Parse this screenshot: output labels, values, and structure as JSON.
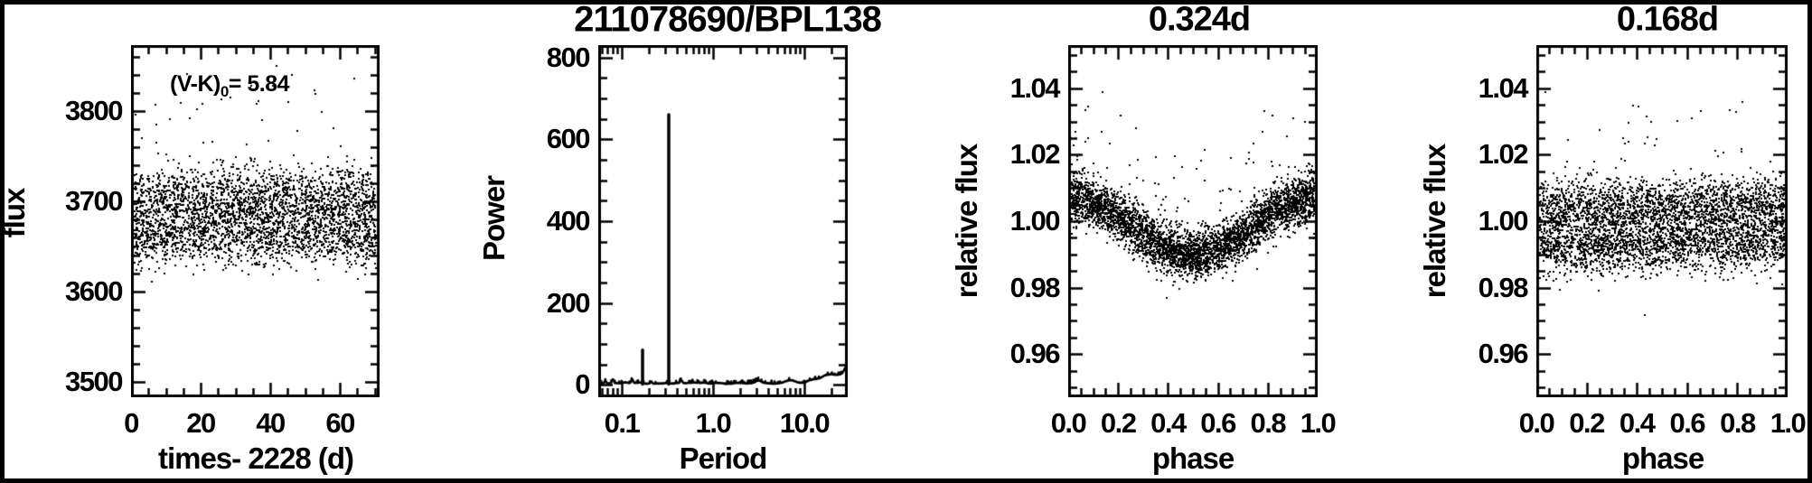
{
  "figure": {
    "title": "211078690/BPL138",
    "background": "#ffffff",
    "frame_color": "#000000",
    "data_color": "#000000"
  },
  "chart_data": [
    {
      "id": "flux-vs-time",
      "type": "scatter",
      "title": "",
      "xlabel": "times- 2228 (d)",
      "ylabel": "flux",
      "annotation": {
        "pre": "(V-K)",
        "sub": "0",
        "post": "= 5.84"
      },
      "xlim": [
        0,
        71.4
      ],
      "ylim": [
        3483,
        3873
      ],
      "xticks": {
        "values": [
          0,
          20,
          40,
          60
        ],
        "labels": [
          "0",
          "20",
          "40",
          "60"
        ]
      },
      "yticks": {
        "values": [
          3500,
          3600,
          3700,
          3800
        ],
        "labels": [
          "3500",
          "3600",
          "3700",
          "3800"
        ]
      },
      "x_minor_step": 5,
      "y_minor_step": 20,
      "grid": false,
      "cloud": {
        "n": 3400,
        "mean": 3683,
        "band_amplitude": 31,
        "noise_sigma": 14,
        "upper_outlier_frac": 0.02,
        "upper_outlier_max": 3862,
        "x_start": 0.3,
        "x_end": 70.9
      }
    },
    {
      "id": "periodogram",
      "type": "line",
      "title": "",
      "xscale": "log",
      "xlabel": "Period",
      "ylabel": "Power",
      "xlim": [
        0.0553,
        29.9
      ],
      "ylim": [
        -30,
        830
      ],
      "xticks": {
        "values": [
          0.1,
          1.0,
          10.0
        ],
        "labels": [
          "0.1",
          "1.0",
          "10.0"
        ]
      },
      "yticks": {
        "values": [
          0,
          200,
          400,
          600,
          800
        ],
        "labels": [
          "0",
          "200",
          "400",
          "600",
          "800"
        ]
      },
      "y_minor_step": 50,
      "grid": false,
      "peaks": [
        {
          "period": 0.324,
          "power": 660
        },
        {
          "period": 0.168,
          "power": 85
        }
      ],
      "noise_floor": {
        "base": 2.5,
        "amplitude": 3.5
      },
      "bumps": [
        [
          0.066,
          6,
          0.01
        ],
        [
          0.08,
          10,
          0.01
        ],
        [
          0.13,
          9,
          0.009
        ],
        [
          0.21,
          5,
          0.009
        ],
        [
          0.45,
          7,
          0.012
        ],
        [
          3.2,
          5,
          0.04
        ],
        [
          7,
          8,
          0.05
        ],
        [
          12,
          9,
          0.05
        ],
        [
          16,
          14,
          0.05
        ],
        [
          20,
          16,
          0.05
        ],
        [
          25,
          18,
          0.05
        ],
        [
          29.3,
          32,
          0.03
        ]
      ]
    },
    {
      "id": "phase-fold-best",
      "type": "scatter",
      "title": "0.324d",
      "xlabel": "phase",
      "ylabel": "relative flux",
      "xlim": [
        0,
        1
      ],
      "ylim": [
        0.947,
        1.053
      ],
      "xticks": {
        "values": [
          0,
          0.2,
          0.4,
          0.6,
          0.8,
          1.0
        ],
        "labels": [
          "0.0",
          "0.2",
          "0.4",
          "0.6",
          "0.8",
          "1.0"
        ]
      },
      "yticks": {
        "values": [
          0.96,
          0.98,
          1.0,
          1.02,
          1.04
        ],
        "labels": [
          "0.96",
          "0.98",
          "1.00",
          "1.02",
          "1.04"
        ]
      },
      "x_minor_step": 0.05,
      "y_minor_step": 0.005,
      "grid": false,
      "fold": {
        "n": 4200,
        "mean": 0.9985,
        "amplitude": 0.0085,
        "noise_sigma": 0.0036,
        "coherent": true,
        "upper_outlier_frac": 0.025,
        "upper_outlier_max": 1.038,
        "lower_outlier_frac": 0.004,
        "lower_outlier_min": 0.9745
      }
    },
    {
      "id": "phase-fold-alias",
      "type": "scatter",
      "title": "0.168d",
      "xlabel": "phase",
      "ylabel": "relative flux",
      "xlim": [
        0,
        1
      ],
      "ylim": [
        0.947,
        1.053
      ],
      "xticks": {
        "values": [
          0,
          0.2,
          0.4,
          0.6,
          0.8,
          1.0
        ],
        "labels": [
          "0.0",
          "0.2",
          "0.4",
          "0.6",
          "0.8",
          "1.0"
        ]
      },
      "yticks": {
        "values": [
          0.96,
          0.98,
          1.0,
          1.02,
          1.04
        ],
        "labels": [
          "0.96",
          "0.98",
          "1.00",
          "1.02",
          "1.04"
        ]
      },
      "x_minor_step": 0.05,
      "y_minor_step": 0.005,
      "grid": false,
      "fold": {
        "n": 4200,
        "mean": 0.9985,
        "amplitude": 0.0085,
        "noise_sigma": 0.0036,
        "coherent": false,
        "upper_outlier_frac": 0.016,
        "upper_outlier_max": 1.041,
        "lower_outlier_frac": 0.003,
        "lower_outlier_min": 0.975
      }
    }
  ]
}
